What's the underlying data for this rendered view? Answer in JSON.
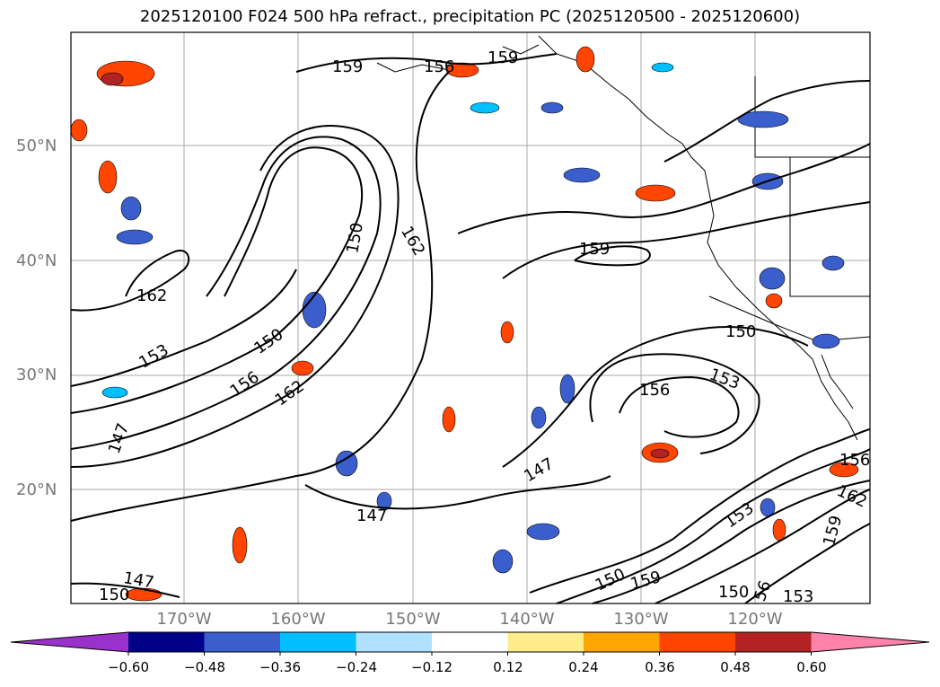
{
  "title": "2025120100 F024 500 hPa refract., precipitation PC (2025120500 - 2025120600)",
  "map": {
    "lat_labels": [
      "50°N",
      "40°N",
      "30°N",
      "20°N"
    ],
    "lon_labels": [
      "170°W",
      "160°W",
      "150°W",
      "140°W",
      "130°W",
      "120°W"
    ],
    "contour_labels": [
      "159",
      "156",
      "159",
      "150",
      "162",
      "162",
      "159",
      "150",
      "153",
      "150",
      "156",
      "162",
      "147",
      "156",
      "153",
      "147",
      "147",
      "147",
      "150",
      "159",
      "153",
      "156",
      "162",
      "159",
      "56",
      "153",
      "150",
      "150"
    ]
  },
  "colorbar": {
    "ticks": [
      "−0.60",
      "−0.48",
      "−0.36",
      "−0.24",
      "−0.12",
      "0.12",
      "0.24",
      "0.36",
      "0.48",
      "0.60"
    ],
    "colors": [
      "#9932CC",
      "#00008B",
      "#3A5FCD",
      "#00BFFF",
      "#B0E2FF",
      "#FFFFFF",
      "#FFEC8B",
      "#FFA500",
      "#FF4500",
      "#B22222",
      "#FF82AB"
    ]
  }
}
